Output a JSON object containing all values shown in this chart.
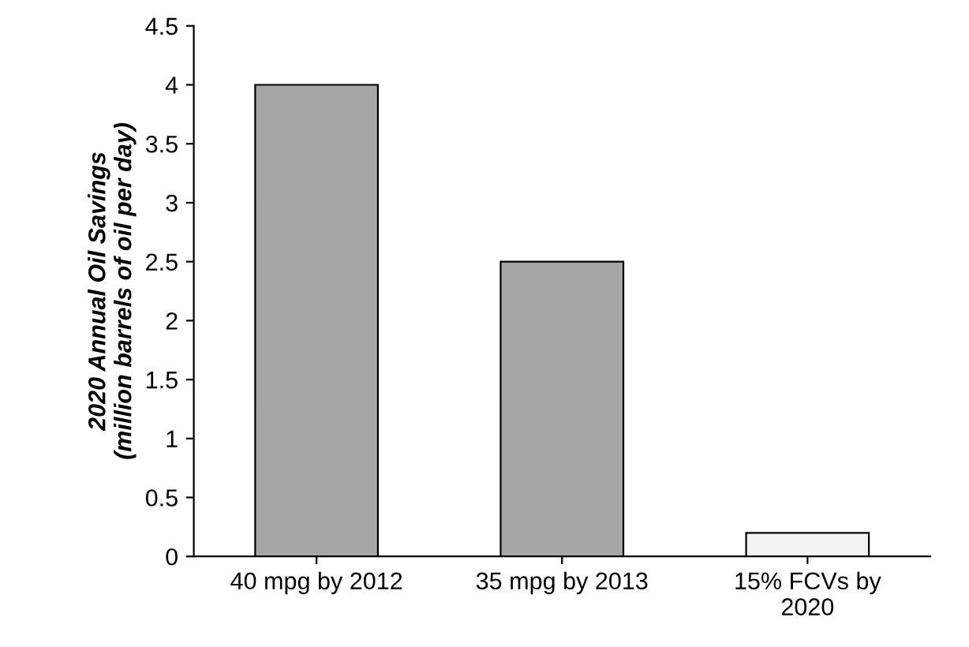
{
  "chart_data": {
    "type": "bar",
    "ylabel": "2020 Annual Oil Savings\n(million barrels of oil per day)",
    "categories": [
      "40 mpg by 2012",
      "35 mpg by 2013",
      "15% FCVs by\n2020"
    ],
    "values": [
      4.0,
      2.5,
      0.2
    ],
    "colors": [
      "#a6a6a6",
      "#a6a6a6",
      "#f2f2f2"
    ],
    "ylim": [
      0,
      4.5
    ],
    "yticks": [
      0,
      0.5,
      1,
      1.5,
      2,
      2.5,
      3,
      3.5,
      4,
      4.5
    ],
    "grid": false
  }
}
